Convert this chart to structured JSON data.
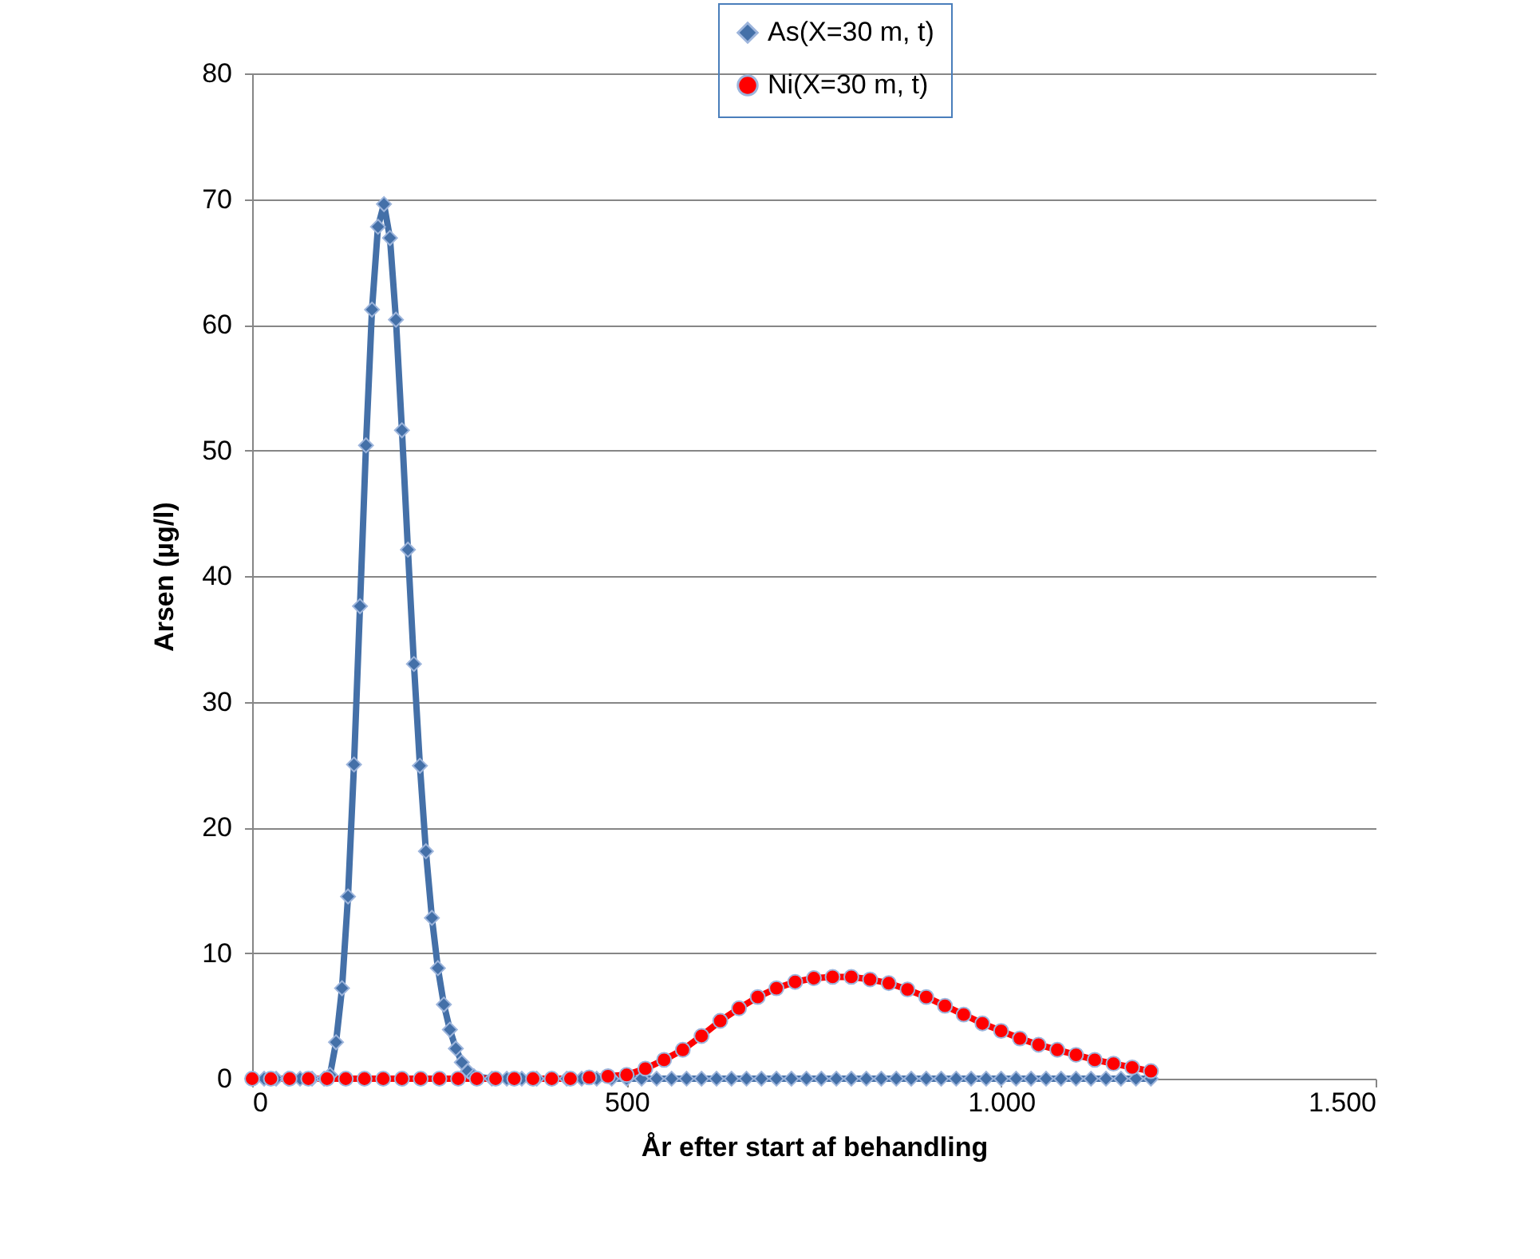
{
  "chart_data": {
    "type": "line",
    "xlabel": "År efter start af behandling",
    "ylabel": "Arsen (µg/l)",
    "xlim": [
      0,
      1500
    ],
    "xticks": [
      0,
      500,
      {
        "value": 1000,
        "label": "1.000"
      },
      {
        "value": 1500,
        "label": "1.500"
      }
    ],
    "ylim": [
      0,
      80
    ],
    "yticks": [
      0,
      10,
      20,
      30,
      40,
      50,
      60,
      70,
      80
    ],
    "grid": "y",
    "legend": "top right",
    "series": [
      {
        "name": "As(X=30 m, t)",
        "color": "#4470a8",
        "marker": "diamond",
        "line_style": "solid",
        "x": [
          0,
          16,
          32,
          48,
          64,
          80,
          96,
          104,
          112,
          120,
          128,
          136,
          144,
          152,
          160,
          168,
          176,
          184,
          192,
          200,
          208,
          216,
          224,
          232,
          240,
          248,
          256,
          264,
          272,
          280,
          288,
          296,
          320,
          340,
          360,
          380,
          400,
          420,
          440,
          460,
          480,
          500,
          520,
          540,
          560,
          580,
          600,
          620,
          640,
          660,
          680,
          700,
          720,
          740,
          760,
          780,
          800,
          820,
          840,
          860,
          880,
          900,
          920,
          940,
          960,
          980,
          1000,
          1020,
          1040,
          1060,
          1080,
          1100,
          1120,
          1140,
          1160,
          1180,
          1200
        ],
        "values": [
          0,
          0,
          0,
          0,
          0,
          0,
          0,
          0.3,
          2.9,
          7.2,
          14.5,
          25,
          37.6,
          50.4,
          61.2,
          67.8,
          69.6,
          66.9,
          60.4,
          51.6,
          42.1,
          33,
          24.9,
          18.1,
          12.8,
          8.8,
          5.9,
          3.9,
          2.4,
          1.3,
          0.6,
          0.2,
          0,
          0,
          0,
          0,
          0,
          0,
          0,
          0,
          0,
          0,
          0,
          0,
          0,
          0,
          0,
          0,
          0,
          0,
          0,
          0,
          0,
          0,
          0,
          0,
          0,
          0,
          0,
          0,
          0,
          0,
          0,
          0,
          0,
          0,
          0,
          0,
          0,
          0,
          0,
          0,
          0,
          0,
          0,
          0,
          0
        ]
      },
      {
        "name": "Ni(X=30 m, t)",
        "color": "#ff0000",
        "marker": "circle",
        "line_style": "solid",
        "x": [
          0,
          25,
          50,
          75,
          100,
          125,
          150,
          175,
          200,
          225,
          250,
          275,
          300,
          325,
          350,
          375,
          400,
          425,
          450,
          475,
          500,
          525,
          550,
          575,
          600,
          625,
          650,
          675,
          700,
          725,
          750,
          775,
          800,
          825,
          850,
          875,
          900,
          925,
          950,
          975,
          1000,
          1025,
          1050,
          1075,
          1100,
          1125,
          1150,
          1175,
          1200
        ],
        "values": [
          0,
          0,
          0,
          0,
          0,
          0,
          0,
          0,
          0,
          0,
          0,
          0,
          0,
          0,
          0,
          0,
          0,
          0,
          0.1,
          0.2,
          0.3,
          0.8,
          1.5,
          2.3,
          3.4,
          4.6,
          5.6,
          6.5,
          7.2,
          7.7,
          8.0,
          8.1,
          8.1,
          7.9,
          7.6,
          7.1,
          6.5,
          5.8,
          5.1,
          4.4,
          3.8,
          3.2,
          2.7,
          2.3,
          1.9,
          1.5,
          1.2,
          0.9,
          0.6
        ]
      }
    ]
  }
}
